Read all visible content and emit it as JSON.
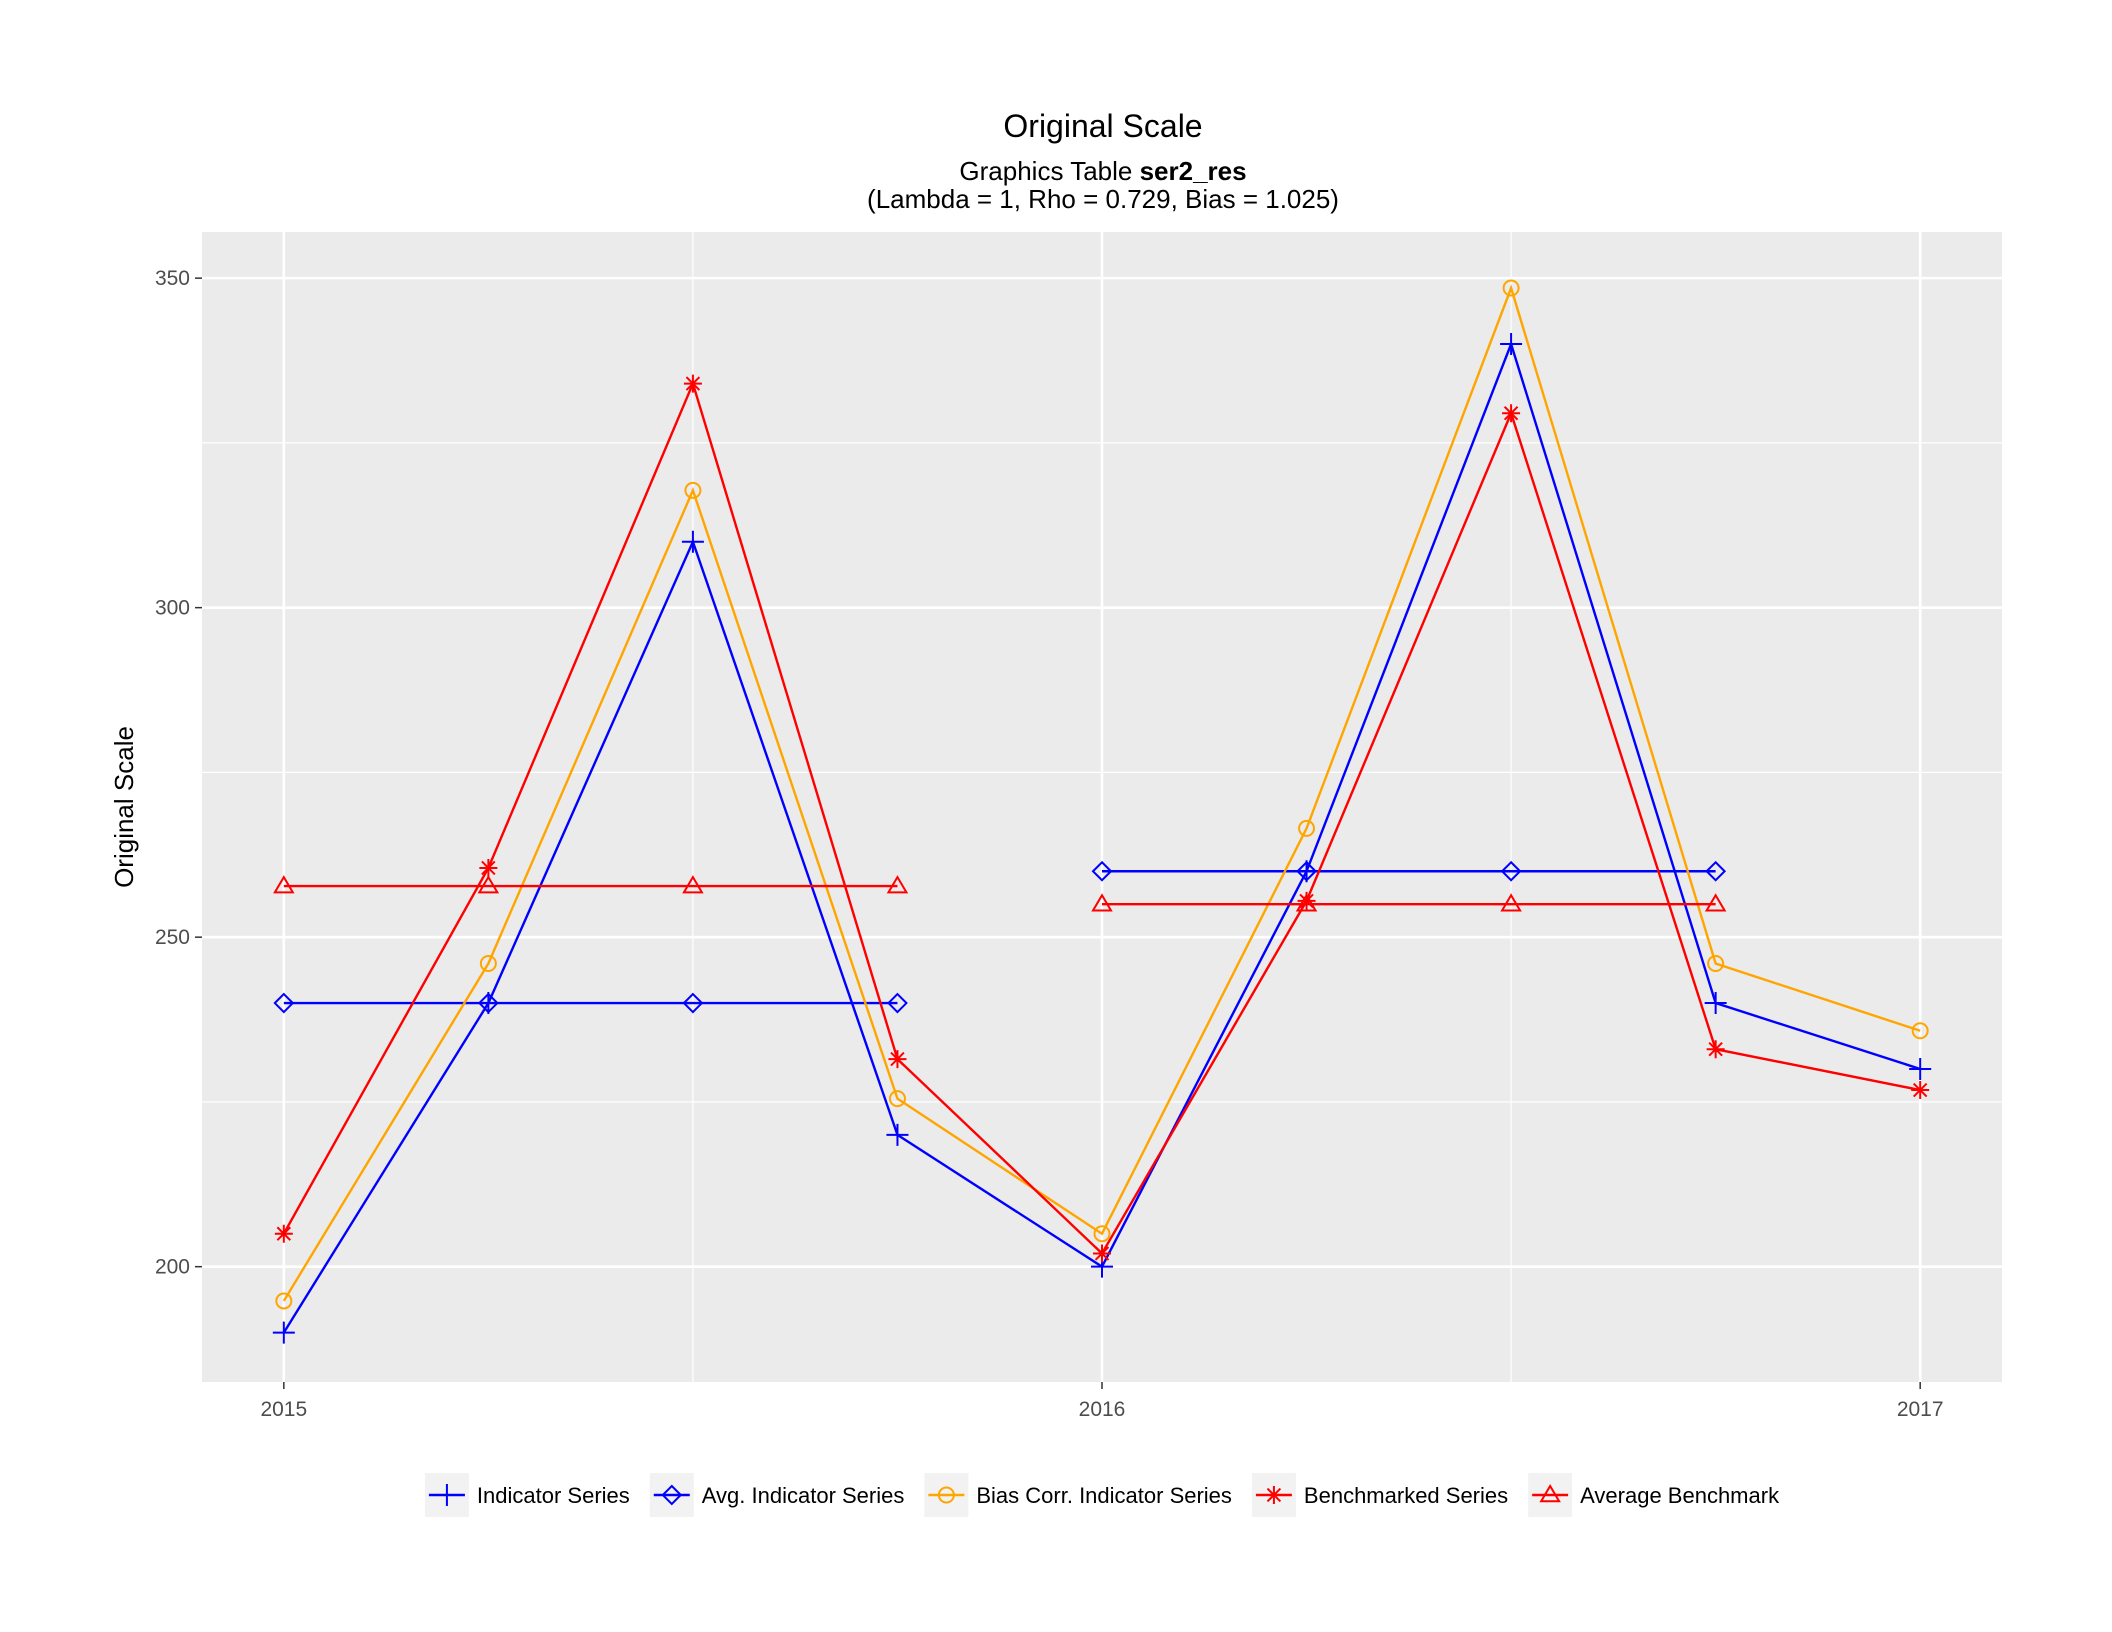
{
  "chart_data": {
    "type": "line",
    "title": "Original Scale",
    "subtitle_prefix": "Graphics Table ",
    "subtitle_bold": "ser2_res",
    "subtitle_line2": "(Lambda = 1, Rho = 0.729, Bias = 1.025)",
    "ylabel": "Original Scale",
    "xlabel": "",
    "xlim": [
      2014.9,
      2017.1
    ],
    "ylim": [
      182.5,
      357
    ],
    "x_ticks": [
      2015,
      2016,
      2017
    ],
    "x_tick_labels": [
      "2015",
      "2016",
      "2017"
    ],
    "y_ticks": [
      200,
      250,
      300,
      350
    ],
    "y_tick_labels": [
      "200",
      "250",
      "300",
      "350"
    ],
    "grid": true,
    "legend_position": "bottom",
    "series": [
      {
        "name": "Indicator Series",
        "color": "#0000ff",
        "marker": "plus",
        "segments": [
          [
            [
              2015.0,
              190
            ],
            [
              2015.25,
              240
            ],
            [
              2015.5,
              310
            ],
            [
              2015.75,
              220
            ],
            [
              2016.0,
              200
            ],
            [
              2016.25,
              260
            ],
            [
              2016.5,
              340
            ],
            [
              2016.75,
              240
            ],
            [
              2017.0,
              230
            ]
          ]
        ]
      },
      {
        "name": "Avg. Indicator Series",
        "color": "#0000ff",
        "marker": "diamond",
        "segments": [
          [
            [
              2015.0,
              240
            ],
            [
              2015.25,
              240
            ],
            [
              2015.5,
              240
            ],
            [
              2015.75,
              240
            ]
          ],
          [
            [
              2016.0,
              260
            ],
            [
              2016.25,
              260
            ],
            [
              2016.5,
              260
            ],
            [
              2016.75,
              260
            ]
          ]
        ]
      },
      {
        "name": "Bias Corr. Indicator Series",
        "color": "#ffa500",
        "marker": "circle",
        "segments": [
          [
            [
              2015.0,
              194.8
            ],
            [
              2015.25,
              246.0
            ],
            [
              2015.5,
              317.8
            ],
            [
              2015.75,
              225.5
            ],
            [
              2016.0,
              205.0
            ],
            [
              2016.25,
              266.5
            ],
            [
              2016.5,
              348.5
            ],
            [
              2016.75,
              246.0
            ],
            [
              2017.0,
              235.8
            ]
          ]
        ]
      },
      {
        "name": "Benchmarked Series",
        "color": "#ff0000",
        "marker": "star",
        "segments": [
          [
            [
              2015.0,
              205.0
            ],
            [
              2015.25,
              260.5
            ],
            [
              2015.5,
              334.0
            ],
            [
              2015.75,
              231.5
            ],
            [
              2016.0,
              202.0
            ],
            [
              2016.25,
              255.5
            ],
            [
              2016.5,
              329.5
            ],
            [
              2016.75,
              233.0
            ],
            [
              2017.0,
              226.8
            ]
          ]
        ]
      },
      {
        "name": "Average Benchmark",
        "color": "#ff0000",
        "marker": "triangle",
        "segments": [
          [
            [
              2015.0,
              257.75
            ],
            [
              2015.25,
              257.75
            ],
            [
              2015.5,
              257.75
            ],
            [
              2015.75,
              257.75
            ]
          ],
          [
            [
              2016.0,
              255.0
            ],
            [
              2016.25,
              255.0
            ],
            [
              2016.5,
              255.0
            ],
            [
              2016.75,
              255.0
            ]
          ]
        ]
      }
    ]
  }
}
